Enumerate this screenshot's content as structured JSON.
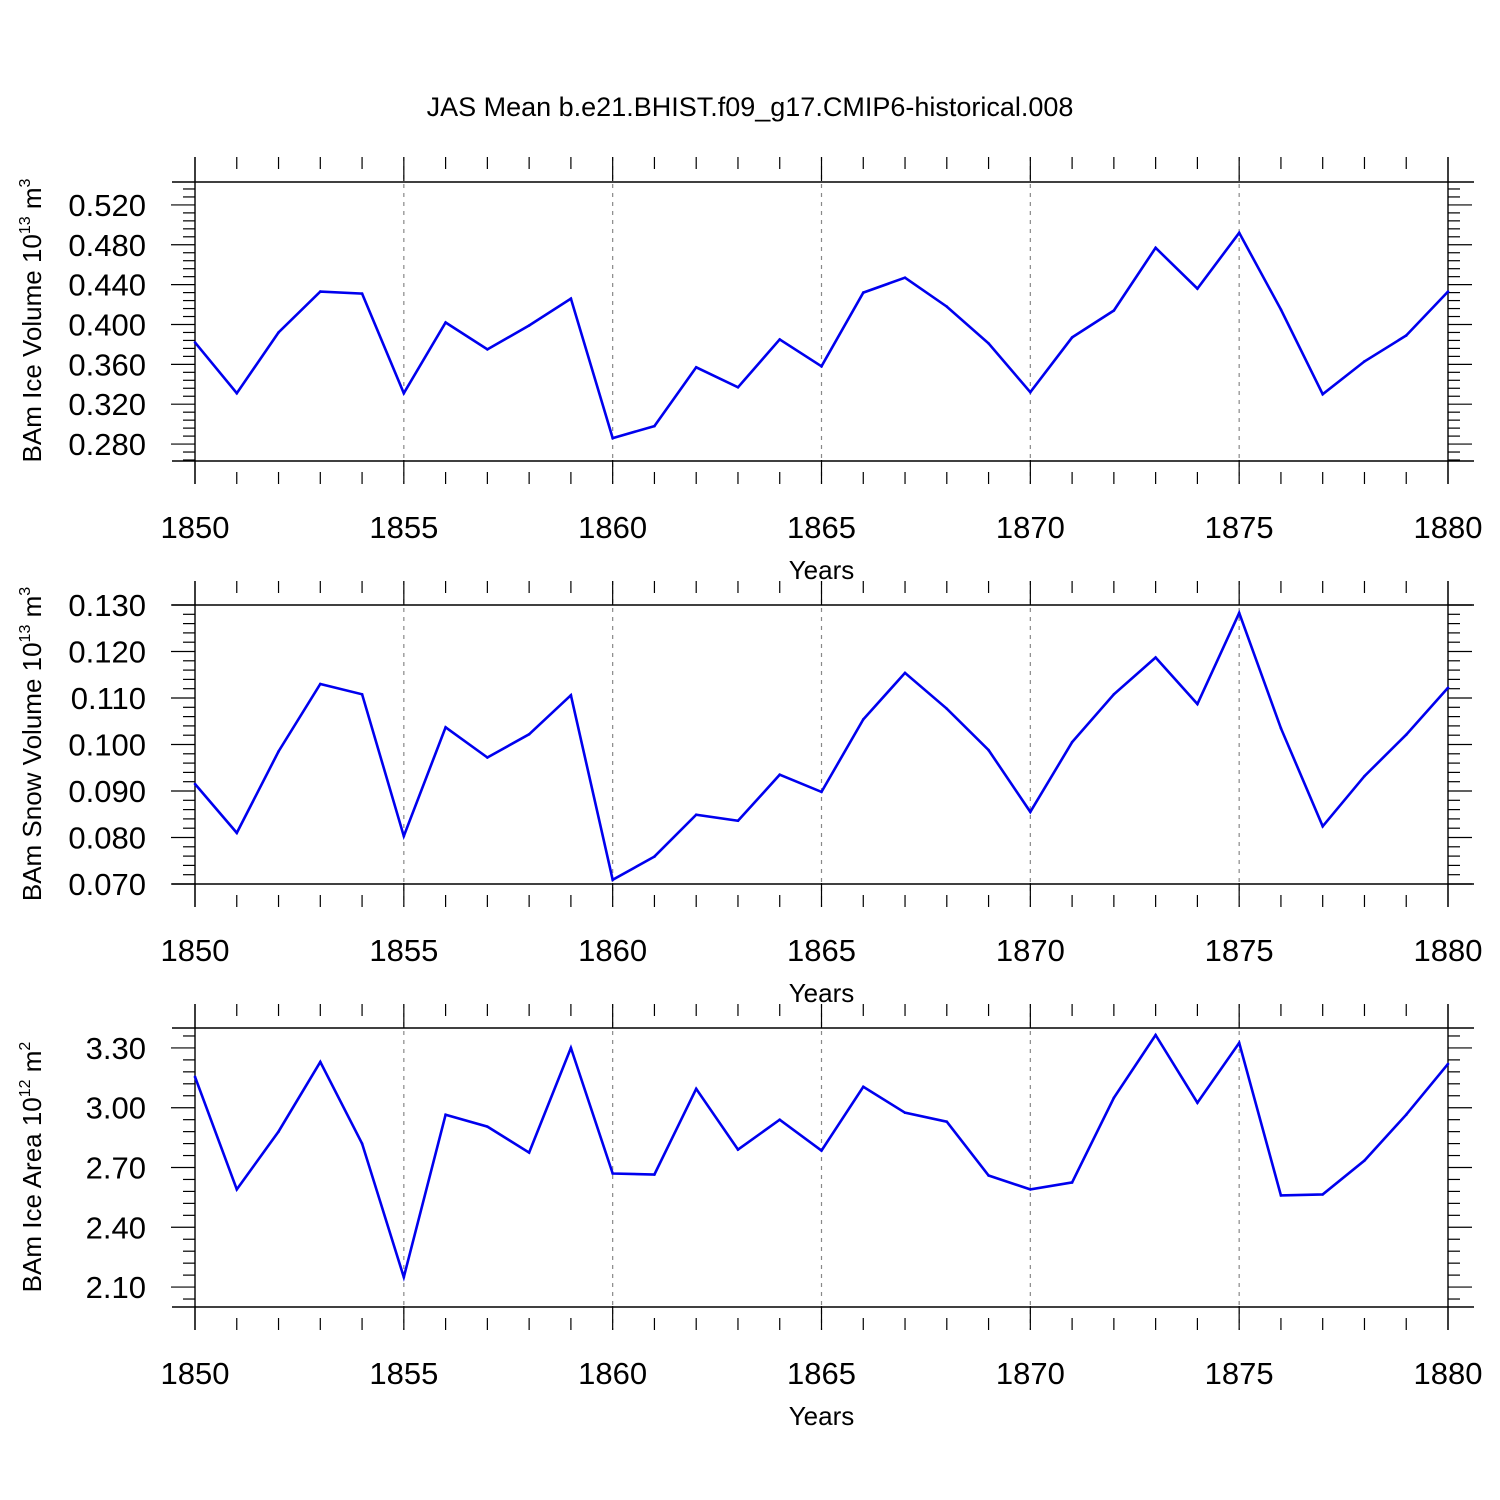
{
  "title": "JAS Mean b.e21.BHIST.f09_g17.CMIP6-historical.008",
  "colors": {
    "line": "#0000ee",
    "axis": "#000000",
    "grid": "#888888"
  },
  "chart_data": [
    {
      "type": "line",
      "ylabel": "BAm Ice Volume 10",
      "ylabel_exp": "13",
      "ylabel_unit": "m",
      "ylabel_unit_exp": "3",
      "xlabel": "Years",
      "xlim": [
        1850,
        1880
      ],
      "ylim": [
        0.263,
        0.543
      ],
      "xticks": [
        "1850",
        "1855",
        "1860",
        "1865",
        "1870",
        "1875",
        "1880"
      ],
      "yticks": [
        "0.520",
        "0.480",
        "0.440",
        "0.400",
        "0.360",
        "0.320",
        "0.280"
      ],
      "x": [
        1850,
        1851,
        1852,
        1853,
        1854,
        1855,
        1856,
        1857,
        1858,
        1859,
        1860,
        1861,
        1862,
        1863,
        1864,
        1865,
        1866,
        1867,
        1868,
        1869,
        1870,
        1871,
        1872,
        1873,
        1874,
        1875,
        1876,
        1877,
        1878,
        1879,
        1880
      ],
      "values": [
        0.382,
        0.331,
        0.392,
        0.433,
        0.431,
        0.331,
        0.402,
        0.375,
        0.399,
        0.426,
        0.286,
        0.298,
        0.357,
        0.337,
        0.385,
        0.358,
        0.432,
        0.447,
        0.418,
        0.381,
        0.332,
        0.387,
        0.414,
        0.477,
        0.436,
        0.492,
        0.415,
        0.33,
        0.363,
        0.389,
        0.433
      ],
      "grid": "dashed vertical at major x ticks"
    },
    {
      "type": "line",
      "ylabel": "BAm Snow Volume 10",
      "ylabel_exp": "13",
      "ylabel_unit": "m",
      "ylabel_unit_exp": "3",
      "xlabel": "Years",
      "xlim": [
        1850,
        1880
      ],
      "ylim": [
        0.07,
        0.13
      ],
      "xticks": [
        "1850",
        "1855",
        "1860",
        "1865",
        "1870",
        "1875",
        "1880"
      ],
      "yticks": [
        "0.130",
        "0.120",
        "0.110",
        "0.100",
        "0.090",
        "0.080",
        "0.070"
      ],
      "x": [
        1850,
        1851,
        1852,
        1853,
        1854,
        1855,
        1856,
        1857,
        1858,
        1859,
        1860,
        1861,
        1862,
        1863,
        1864,
        1865,
        1866,
        1867,
        1868,
        1869,
        1870,
        1871,
        1872,
        1873,
        1874,
        1875,
        1876,
        1877,
        1878,
        1879,
        1880
      ],
      "values": [
        0.0915,
        0.081,
        0.0985,
        0.113,
        0.1108,
        0.0803,
        0.1037,
        0.0972,
        0.1022,
        0.1106,
        0.0709,
        0.0759,
        0.0849,
        0.0836,
        0.0935,
        0.0898,
        0.1054,
        0.1154,
        0.1077,
        0.0988,
        0.0855,
        0.1005,
        0.1108,
        0.1187,
        0.1087,
        0.1283,
        0.1035,
        0.0824,
        0.0932,
        0.1021,
        0.1122
      ],
      "grid": "dashed vertical at major x ticks"
    },
    {
      "type": "line",
      "ylabel": "BAm Ice Area 10",
      "ylabel_exp": "12",
      "ylabel_unit": "m",
      "ylabel_unit_exp": "2",
      "xlabel": "Years",
      "xlim": [
        1850,
        1880
      ],
      "ylim": [
        2.0,
        3.4
      ],
      "xticks": [
        "1850",
        "1855",
        "1860",
        "1865",
        "1870",
        "1875",
        "1880"
      ],
      "yticks": [
        "3.30",
        "3.00",
        "2.70",
        "2.40",
        "2.10"
      ],
      "x": [
        1850,
        1851,
        1852,
        1853,
        1854,
        1855,
        1856,
        1857,
        1858,
        1859,
        1860,
        1861,
        1862,
        1863,
        1864,
        1865,
        1866,
        1867,
        1868,
        1869,
        1870,
        1871,
        1872,
        1873,
        1874,
        1875,
        1876,
        1877,
        1878,
        1879,
        1880
      ],
      "values": [
        3.155,
        2.59,
        2.88,
        3.23,
        2.82,
        2.15,
        2.965,
        2.905,
        2.775,
        3.3,
        2.67,
        2.665,
        3.095,
        2.79,
        2.94,
        2.785,
        3.105,
        2.975,
        2.93,
        2.66,
        2.59,
        2.625,
        3.05,
        3.365,
        3.025,
        3.325,
        2.56,
        2.565,
        2.735,
        2.965,
        3.22
      ],
      "grid": "dashed vertical at major x ticks"
    }
  ]
}
